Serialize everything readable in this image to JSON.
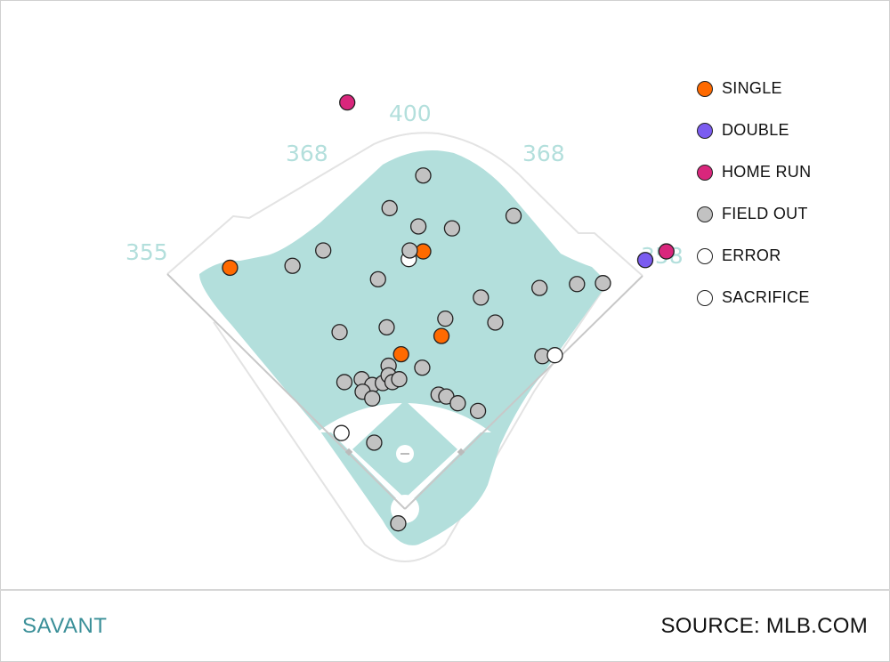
{
  "chart_data": {
    "type": "scatter",
    "title": "",
    "units": "feet from home plate",
    "wall_distances": [
      {
        "label": "355"
      },
      {
        "label": "368"
      },
      {
        "label": "400"
      },
      {
        "label": "368"
      },
      {
        "label": "358"
      }
    ],
    "legend": [
      {
        "key": "single",
        "label": "SINGLE",
        "color": "#ff6a00"
      },
      {
        "key": "double",
        "label": "DOUBLE",
        "color": "#7b5cf0"
      },
      {
        "key": "home_run",
        "label": "HOME RUN",
        "color": "#d9267c"
      },
      {
        "key": "field_out",
        "label": "FIELD OUT",
        "color": "#c2c2c2"
      },
      {
        "key": "error",
        "label": "ERROR",
        "color": "#ffffff"
      },
      {
        "key": "sacrifice",
        "label": "SACRIFICE",
        "color": "#ffffff"
      }
    ],
    "points": [
      {
        "type": "home_run",
        "x": -60,
        "y": 423
      },
      {
        "type": "home_run",
        "x": 272,
        "y": 268
      },
      {
        "type": "double",
        "x": 250,
        "y": 259
      },
      {
        "type": "single",
        "x": -182,
        "y": 251
      },
      {
        "type": "single",
        "x": 19,
        "y": 268
      },
      {
        "type": "single",
        "x": 38,
        "y": 180
      },
      {
        "type": "single",
        "x": -4,
        "y": 161
      },
      {
        "type": "field_out",
        "x": 19,
        "y": 347
      },
      {
        "type": "field_out",
        "x": -16,
        "y": 313
      },
      {
        "type": "field_out",
        "x": 14,
        "y": 294
      },
      {
        "type": "field_out",
        "x": 49,
        "y": 292
      },
      {
        "type": "field_out",
        "x": 113,
        "y": 305
      },
      {
        "type": "field_out",
        "x": -85,
        "y": 269
      },
      {
        "type": "field_out",
        "x": -117,
        "y": 253
      },
      {
        "type": "error",
        "x": 4,
        "y": 260
      },
      {
        "type": "field_out",
        "x": 5,
        "y": 269
      },
      {
        "type": "field_out",
        "x": -28,
        "y": 239
      },
      {
        "type": "field_out",
        "x": 79,
        "y": 220
      },
      {
        "type": "field_out",
        "x": 140,
        "y": 230
      },
      {
        "type": "field_out",
        "x": 179,
        "y": 234
      },
      {
        "type": "field_out",
        "x": 206,
        "y": 235
      },
      {
        "type": "field_out",
        "x": 94,
        "y": 194
      },
      {
        "type": "field_out",
        "x": 42,
        "y": 198
      },
      {
        "type": "field_out",
        "x": -19,
        "y": 189
      },
      {
        "type": "field_out",
        "x": -68,
        "y": 184
      },
      {
        "type": "field_out",
        "x": 143,
        "y": 159
      },
      {
        "type": "sacrifice",
        "x": 156,
        "y": 160
      },
      {
        "type": "field_out",
        "x": 18,
        "y": 147
      },
      {
        "type": "field_out",
        "x": -17,
        "y": 149
      },
      {
        "type": "field_out",
        "x": -63,
        "y": 132
      },
      {
        "type": "field_out",
        "x": -45,
        "y": 135
      },
      {
        "type": "field_out",
        "x": -34,
        "y": 129
      },
      {
        "type": "field_out",
        "x": -44,
        "y": 122
      },
      {
        "type": "field_out",
        "x": -23,
        "y": 131
      },
      {
        "type": "field_out",
        "x": -17,
        "y": 139
      },
      {
        "type": "field_out",
        "x": -13,
        "y": 132
      },
      {
        "type": "field_out",
        "x": -6,
        "y": 135
      },
      {
        "type": "field_out",
        "x": -34,
        "y": 115
      },
      {
        "type": "field_out",
        "x": 35,
        "y": 119
      },
      {
        "type": "field_out",
        "x": 43,
        "y": 117
      },
      {
        "type": "field_out",
        "x": 55,
        "y": 110
      },
      {
        "type": "field_out",
        "x": 76,
        "y": 102
      },
      {
        "type": "error",
        "x": -66,
        "y": 79
      },
      {
        "type": "field_out",
        "x": -32,
        "y": 69
      },
      {
        "type": "field_out",
        "x": -7,
        "y": -15
      }
    ],
    "grid": false,
    "legend_placement": "top-right"
  },
  "colors": {
    "field_grass": "#b3dfdc",
    "brand": "#3a8f98"
  },
  "footer": {
    "brand": "SAVANT",
    "source": "SOURCE: MLB.COM"
  }
}
